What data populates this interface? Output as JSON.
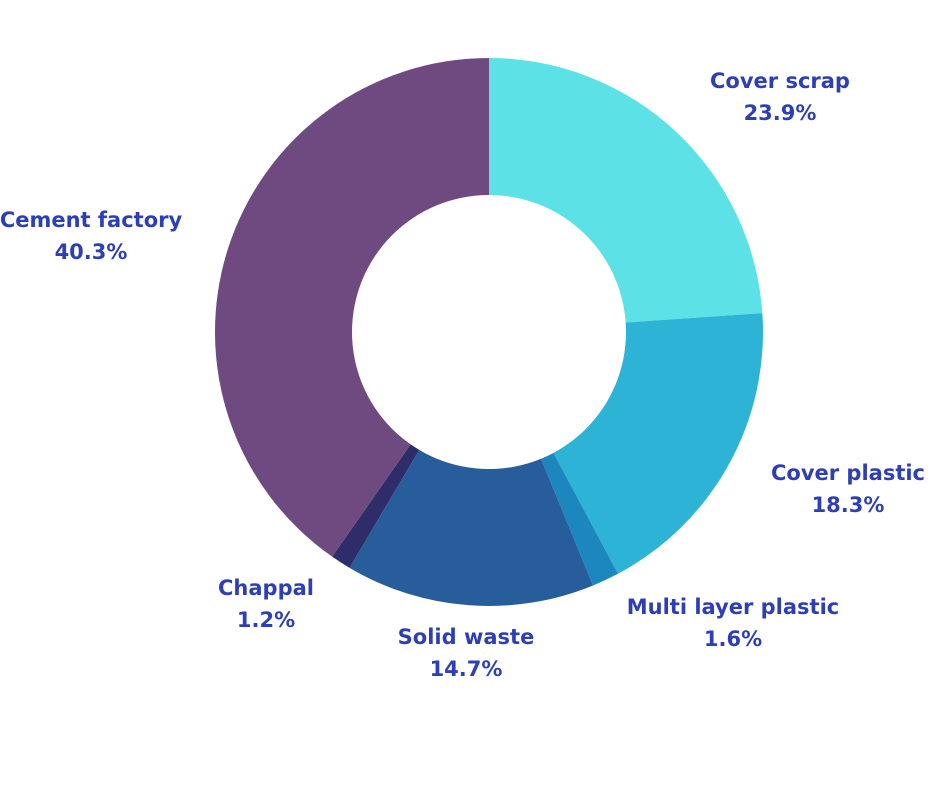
{
  "chart_data": {
    "type": "pie",
    "style": "donut",
    "start": "top, clockwise",
    "label_color": "#2e3fb5",
    "slices": [
      {
        "name": "Cover scrap",
        "value": 23.9,
        "label": "23.9%",
        "color": "#5ce1e6"
      },
      {
        "name": "Cover plastic",
        "value": 18.3,
        "label": "18.3%",
        "color": "#2db3d6"
      },
      {
        "name": "Multi layer plastic",
        "value": 1.6,
        "label": "1.6%",
        "color": "#1c86bf"
      },
      {
        "name": "Solid waste",
        "value": 14.7,
        "label": "14.7%",
        "color": "#285d9c"
      },
      {
        "name": "Chappal",
        "value": 1.2,
        "label": "1.2%",
        "color": "#2f2c6a"
      },
      {
        "name": "Cement factory",
        "value": 40.3,
        "label": "40.3%",
        "color": "#6e4a80"
      }
    ]
  }
}
